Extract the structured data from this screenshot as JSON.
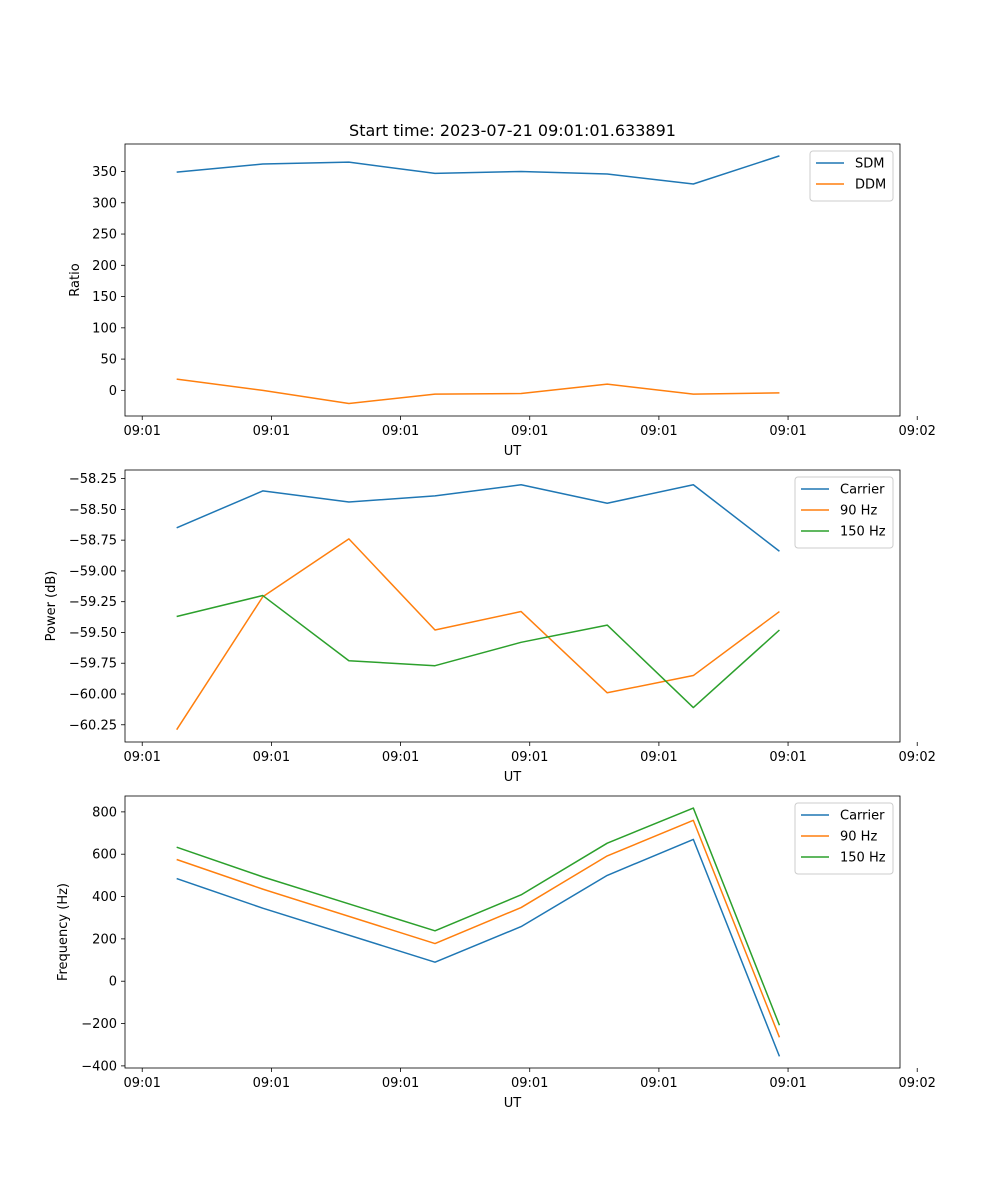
{
  "chart_data": [
    {
      "type": "line",
      "title": "Start time: 2023-07-21 09:01:01.633891",
      "xlabel": "UT",
      "ylabel": "Ratio",
      "xlim": [
        -0.6,
        8.4
      ],
      "ylim": [
        -41,
        394
      ],
      "x_ticks": [
        {
          "v": -0.4,
          "label": "09:01"
        },
        {
          "v": 1.1,
          "label": "09:01"
        },
        {
          "v": 2.6,
          "label": "09:01"
        },
        {
          "v": 4.1,
          "label": "09:01"
        },
        {
          "v": 5.6,
          "label": "09:01"
        },
        {
          "v": 7.1,
          "label": "09:01"
        },
        {
          "v": 8.6,
          "label": "09:02"
        }
      ],
      "y_ticks": [
        0,
        50,
        100,
        150,
        200,
        250,
        300,
        350
      ],
      "legend": "upper-right",
      "x": [
        0,
        1,
        2,
        3,
        4,
        5,
        6,
        7
      ],
      "series": [
        {
          "name": "SDM",
          "color": "#1f77b4",
          "values": [
            349,
            362,
            365,
            347,
            350,
            346,
            330,
            375
          ]
        },
        {
          "name": "DDM",
          "color": "#ff7f0e",
          "values": [
            18,
            0,
            -21,
            -6,
            -5,
            10,
            -6,
            -4
          ]
        }
      ]
    },
    {
      "type": "line",
      "title": "",
      "xlabel": "UT",
      "ylabel": "Power (dB)",
      "xlim": [
        -0.6,
        8.4
      ],
      "ylim": [
        -60.39,
        -58.18
      ],
      "x_ticks": [
        {
          "v": -0.4,
          "label": "09:01"
        },
        {
          "v": 1.1,
          "label": "09:01"
        },
        {
          "v": 2.6,
          "label": "09:01"
        },
        {
          "v": 4.1,
          "label": "09:01"
        },
        {
          "v": 5.6,
          "label": "09:01"
        },
        {
          "v": 7.1,
          "label": "09:01"
        },
        {
          "v": 8.6,
          "label": "09:02"
        }
      ],
      "y_ticks": [
        -60.25,
        -60.0,
        -59.75,
        -59.5,
        -59.25,
        -59.0,
        -58.75,
        -58.5,
        -58.25
      ],
      "legend": "upper-right",
      "x": [
        0,
        1,
        2,
        3,
        4,
        5,
        6,
        7
      ],
      "series": [
        {
          "name": "Carrier",
          "color": "#1f77b4",
          "values": [
            -58.65,
            -58.35,
            -58.44,
            -58.39,
            -58.3,
            -58.45,
            -58.3,
            -58.84
          ]
        },
        {
          "name": "90 Hz",
          "color": "#ff7f0e",
          "values": [
            -60.29,
            -59.21,
            -58.74,
            -59.48,
            -59.33,
            -59.99,
            -59.85,
            -59.33
          ]
        },
        {
          "name": "150 Hz",
          "color": "#2ca02c",
          "values": [
            -59.37,
            -59.2,
            -59.73,
            -59.77,
            -59.58,
            -59.44,
            -60.11,
            -59.48
          ]
        }
      ]
    },
    {
      "type": "line",
      "title": "",
      "xlabel": "UT",
      "ylabel": "Frequency (Hz)",
      "xlim": [
        -0.6,
        8.4
      ],
      "ylim": [
        -410,
        875
      ],
      "x_ticks": [
        {
          "v": -0.4,
          "label": "09:01"
        },
        {
          "v": 1.1,
          "label": "09:01"
        },
        {
          "v": 2.6,
          "label": "09:01"
        },
        {
          "v": 4.1,
          "label": "09:01"
        },
        {
          "v": 5.6,
          "label": "09:01"
        },
        {
          "v": 7.1,
          "label": "09:01"
        },
        {
          "v": 8.6,
          "label": "09:02"
        }
      ],
      "y_ticks": [
        -400,
        -200,
        0,
        200,
        400,
        600,
        800
      ],
      "legend": "upper-right",
      "x": [
        0,
        1,
        2,
        3,
        4,
        5,
        6,
        7
      ],
      "series": [
        {
          "name": "Carrier",
          "color": "#1f77b4",
          "values": [
            485,
            345,
            null,
            90,
            258,
            500,
            670,
            -355
          ]
        },
        {
          "name": "90 Hz",
          "color": "#ff7f0e",
          "values": [
            575,
            435,
            null,
            178,
            348,
            592,
            760,
            -265
          ]
        },
        {
          "name": "150 Hz",
          "color": "#2ca02c",
          "values": [
            633,
            493,
            null,
            238,
            408,
            652,
            818,
            -208
          ]
        }
      ]
    }
  ]
}
